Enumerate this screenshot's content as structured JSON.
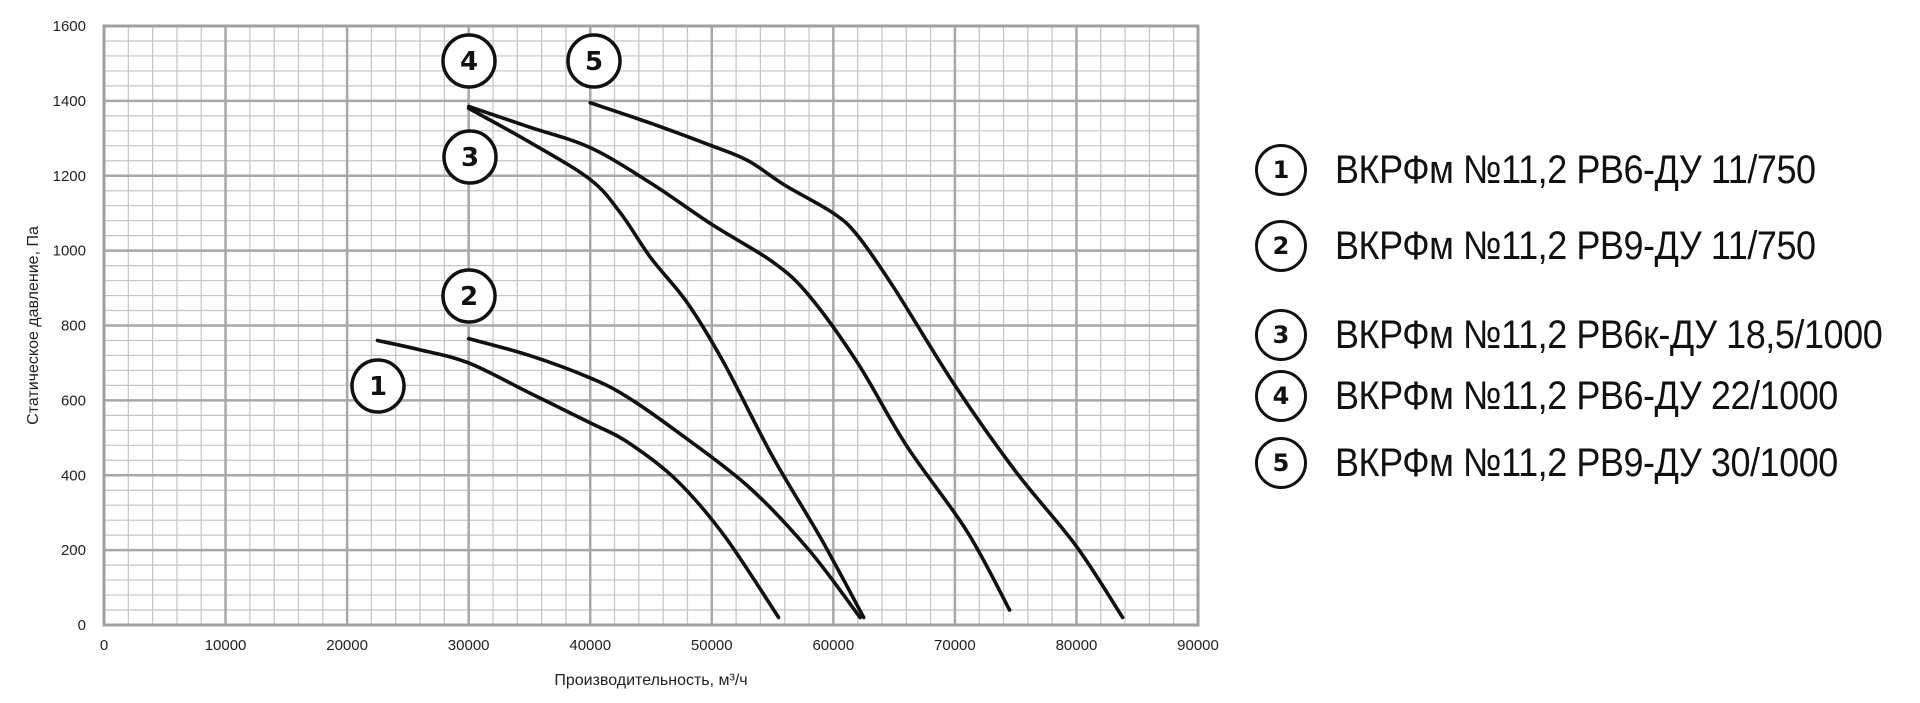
{
  "chart_data": {
    "type": "line",
    "title": "",
    "xlabel": "Производительность, м³/ч",
    "ylabel": "Статическое давление, Па",
    "xlim": [
      0,
      90000
    ],
    "ylim": [
      0,
      1600
    ],
    "x_ticks": [
      "0",
      "10000",
      "20000",
      "30000",
      "40000",
      "50000",
      "60000",
      "70000",
      "80000",
      "90000"
    ],
    "y_ticks": [
      "0",
      "200",
      "400",
      "600",
      "800",
      "1000",
      "1200",
      "1400",
      "1600"
    ],
    "grid": true,
    "legend_position": "right",
    "series": [
      {
        "name": "ВКРФм №11,2 РВ6-ДУ 11/750",
        "marker": "1",
        "points": [
          [
            22500,
            760
          ],
          [
            26000,
            735
          ],
          [
            30000,
            700
          ],
          [
            35000,
            620
          ],
          [
            40000,
            540
          ],
          [
            43000,
            490
          ],
          [
            47000,
            390
          ],
          [
            51000,
            240
          ],
          [
            55500,
            20
          ]
        ]
      },
      {
        "name": "ВКРФм №11,2 РВ9-ДУ 11/750",
        "marker": "2",
        "points": [
          [
            30000,
            765
          ],
          [
            35000,
            720
          ],
          [
            40000,
            660
          ],
          [
            43000,
            610
          ],
          [
            47000,
            520
          ],
          [
            53000,
            370
          ],
          [
            58000,
            200
          ],
          [
            62200,
            20
          ]
        ]
      },
      {
        "name": "ВКРФм №11,2 РВ6к-ДУ 18,5/1000",
        "marker": "3",
        "points": [
          [
            30000,
            1380
          ],
          [
            35000,
            1290
          ],
          [
            40000,
            1190
          ],
          [
            42500,
            1100
          ],
          [
            45000,
            980
          ],
          [
            48000,
            860
          ],
          [
            51000,
            700
          ],
          [
            55000,
            450
          ],
          [
            59000,
            230
          ],
          [
            62500,
            20
          ]
        ]
      },
      {
        "name": "ВКРФм №11,2 РВ6-ДУ 22/1000",
        "marker": "4",
        "points": [
          [
            30000,
            1385
          ],
          [
            35000,
            1330
          ],
          [
            40000,
            1275
          ],
          [
            45000,
            1180
          ],
          [
            50000,
            1070
          ],
          [
            55000,
            970
          ],
          [
            58000,
            880
          ],
          [
            62000,
            700
          ],
          [
            66000,
            480
          ],
          [
            71000,
            250
          ],
          [
            74500,
            40
          ]
        ]
      },
      {
        "name": "ВКРФм №11,2 РВ9-ДУ 30/1000",
        "marker": "5",
        "points": [
          [
            40000,
            1395
          ],
          [
            45000,
            1340
          ],
          [
            50000,
            1280
          ],
          [
            53000,
            1240
          ],
          [
            56000,
            1175
          ],
          [
            60000,
            1100
          ],
          [
            62000,
            1040
          ],
          [
            65000,
            900
          ],
          [
            70000,
            640
          ],
          [
            75000,
            410
          ],
          [
            80000,
            210
          ],
          [
            83800,
            20
          ]
        ]
      }
    ]
  }
}
